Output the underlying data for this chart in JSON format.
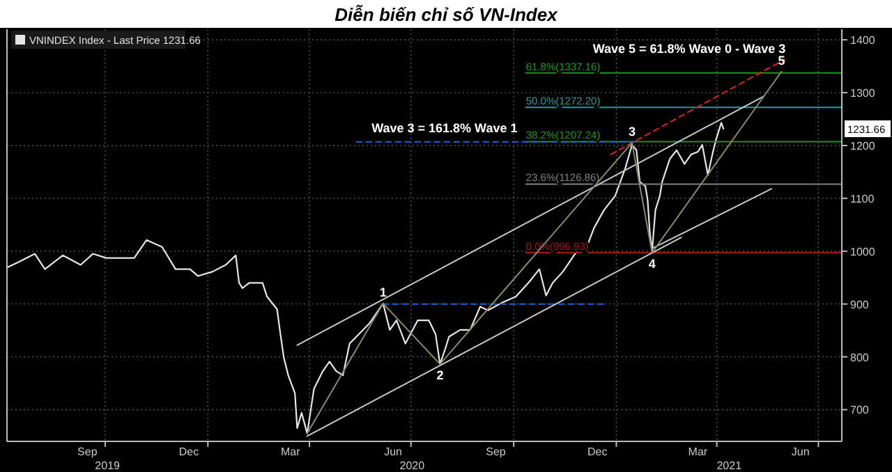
{
  "chart_data": {
    "type": "line",
    "title": "Diễn biến chỉ số VN-Index",
    "x": [
      "2019-07-05",
      "2019-07-15",
      "2019-07-30",
      "2019-08-08",
      "2019-08-24",
      "2019-09-09",
      "2019-09-20",
      "2019-10-02",
      "2019-10-15",
      "2019-10-27",
      "2019-11-07",
      "2019-11-21",
      "2019-12-03",
      "2019-12-16",
      "2019-12-23",
      "2020-01-05",
      "2020-01-17",
      "2020-01-26",
      "2020-01-29",
      "2020-02-01",
      "2020-02-07",
      "2020-02-19",
      "2020-02-23",
      "2020-03-03",
      "2020-03-06",
      "2020-03-09",
      "2020-03-13",
      "2020-03-19",
      "2020-03-21",
      "2020-03-25",
      "2020-03-30",
      "2020-04-05",
      "2020-04-13",
      "2020-04-19",
      "2020-04-25",
      "2020-05-01",
      "2020-05-07",
      "2020-05-13",
      "2020-05-25",
      "2020-06-06",
      "2020-06-12",
      "2020-06-18",
      "2020-06-26",
      "2020-07-07",
      "2020-07-17",
      "2020-07-23",
      "2020-07-27",
      "2020-08-01",
      "2020-08-04",
      "2020-08-14",
      "2020-08-23",
      "2020-09-01",
      "2020-09-08",
      "2020-09-21",
      "2020-10-03",
      "2020-10-15",
      "2020-10-24",
      "2020-10-30",
      "2020-11-05",
      "2020-11-14",
      "2020-11-24",
      "2020-11-30",
      "2020-12-04",
      "2020-12-12",
      "2020-12-21",
      "2020-12-31",
      "2021-01-09",
      "2021-01-15",
      "2021-01-19",
      "2021-01-22",
      "2021-01-27",
      "2021-01-29",
      "2021-01-31",
      "2021-02-02",
      "2021-02-05",
      "2021-02-09",
      "2021-02-11",
      "2021-02-18",
      "2021-02-24",
      "2021-03-03",
      "2021-03-09",
      "2021-03-15",
      "2021-03-19",
      "2021-03-24",
      "2021-03-28",
      "2021-03-31",
      "2021-04-05",
      "2021-04-07"
    ],
    "series": [
      {
        "name": "VNINDEX Index - Last Price 1231.66",
        "color": "#e6e6e6",
        "values": [
          969,
          979,
          995,
          966,
          992,
          974,
          995,
          987,
          987,
          987,
          1021,
          1008,
          966,
          966,
          953,
          961,
          974,
          992,
          940,
          930,
          940,
          940,
          914,
          890,
          843,
          799,
          765,
          731,
          665,
          694,
          655,
          739,
          773,
          791,
          773,
          765,
          825,
          838,
          864,
          901,
          851,
          869,
          825,
          869,
          869,
          843,
          786,
          817,
          838,
          851,
          851,
          895,
          888,
          903,
          914,
          942,
          966,
          916,
          940,
          961,
          992,
          1008,
          1000,
          1044,
          1078,
          1105,
          1157,
          1201,
          1191,
          1131,
          1123,
          1097,
          1034,
          1000,
          1078,
          1105,
          1131,
          1175,
          1191,
          1165,
          1183,
          1188,
          1201,
          1144,
          1183,
          1209,
          1243,
          1231.66
        ]
      },
      {
        "name": "61.8%(1337.16)",
        "color": "#1a9a1a",
        "x": [
          "2020-10-12",
          "2021-07-22"
        ],
        "values": [
          1337.16,
          1337.16
        ]
      },
      {
        "name": "50.0%(1272.20)",
        "color": "#2a9a9a",
        "x": [
          "2020-10-12",
          "2021-07-22"
        ],
        "values": [
          1272.2,
          1272.2
        ]
      },
      {
        "name": "38.2%(1207.24)",
        "color": "#1a9a1a",
        "x": [
          "2020-10-12",
          "2021-07-22"
        ],
        "values": [
          1207.24,
          1207.24
        ]
      },
      {
        "name": "23.6%(1126.86)",
        "color": "#808080",
        "x": [
          "2020-10-12",
          "2021-07-22"
        ],
        "values": [
          1126.86,
          1126.86
        ]
      },
      {
        "name": "0.0%(996.93)",
        "color": "#a01818",
        "x": [
          "2020-10-12",
          "2021-07-22"
        ],
        "values": [
          996.93,
          996.93
        ]
      },
      {
        "color": "#2060e0",
        "line_style": "dashed",
        "x": [
          "2020-05-13",
          "2021-01-17"
        ],
        "values": [
          1207,
          1207
        ]
      },
      {
        "color": "#2060e0",
        "line_style": "dashed",
        "x": [
          "2020-06-06",
          "2020-12-23"
        ],
        "values": [
          900,
          900
        ]
      },
      {
        "color": "#e02028",
        "line_style": "dashed",
        "x": [
          "2020-12-27",
          "2021-06-01"
        ],
        "values": [
          1183,
          1363
        ]
      },
      {
        "color": "#c8c8c8",
        "x": [
          "2020-03-21",
          "2021-05-13"
        ],
        "values": [
          822,
          1293
        ]
      },
      {
        "color": "#c8c8c8",
        "x": [
          "2020-03-30",
          "2021-02-28"
        ],
        "values": [
          650,
          1026
        ]
      },
      {
        "color": "#c8c8c8",
        "x": [
          "2021-02-02",
          "2021-05-20"
        ],
        "values": [
          1005,
          1118
        ]
      },
      {
        "color": "#8a8a6a",
        "x": [
          "2020-03-30",
          "2020-06-06",
          "2020-07-27",
          "2021-01-15",
          "2021-02-02",
          "2021-05-29"
        ],
        "values": [
          655,
          901,
          786,
          1205,
          997,
          1340
        ]
      }
    ],
    "xlim": [
      "2019-07-05",
      "2021-07-22"
    ],
    "xticks": [
      {
        "value": "2019-09-15",
        "label": "Sep"
      },
      {
        "value": "2019-12-15",
        "label": "Dec"
      },
      {
        "value": "2020-03-15",
        "label": "Mar"
      },
      {
        "value": "2020-06-15",
        "label": "Jun"
      },
      {
        "value": "2020-09-15",
        "label": "Sep"
      },
      {
        "value": "2020-12-15",
        "label": "Dec"
      },
      {
        "value": "2021-03-15",
        "label": "Mar"
      },
      {
        "value": "2021-06-15",
        "label": "Jun"
      },
      {
        "value": "2019-10-01",
        "label": null
      },
      {
        "value": "2020-01-01",
        "label": null
      },
      {
        "value": "2020-04-01",
        "label": null
      },
      {
        "value": "2020-07-01",
        "label": null
      },
      {
        "value": "2020-10-01",
        "label": null
      },
      {
        "value": "2021-01-01",
        "label": null
      },
      {
        "value": "2021-04-01",
        "label": null
      },
      {
        "value": "2021-07-01",
        "label": null
      }
    ],
    "ylim": [
      640,
      1420
    ],
    "yticks": [
      700,
      800,
      900,
      1000,
      1100,
      1200,
      1300,
      1400
    ],
    "grid": true,
    "legend": "top left",
    "annotations": [
      {
        "text": "Wave 3 = 161.8% Wave 1",
        "x": "2020-07-31",
        "y": 1212
      },
      "Wave 5 = 61.8% Wave 0 - Wave 3",
      {
        "text": "1",
        "x": "2020-06-06",
        "y": 901
      },
      {
        "text": "2",
        "x": "2020-07-27",
        "y": 786
      },
      {
        "text": "3",
        "x": "2021-01-15",
        "y": 1205
      },
      {
        "text": "4",
        "x": "2021-02-02",
        "y": 997
      },
      {
        "text": "5",
        "x": "2021-05-29",
        "y": 1340
      },
      {
        "text": "1231.66",
        "y": 1231.66
      },
      "2019",
      "2020",
      "2021"
    ]
  }
}
